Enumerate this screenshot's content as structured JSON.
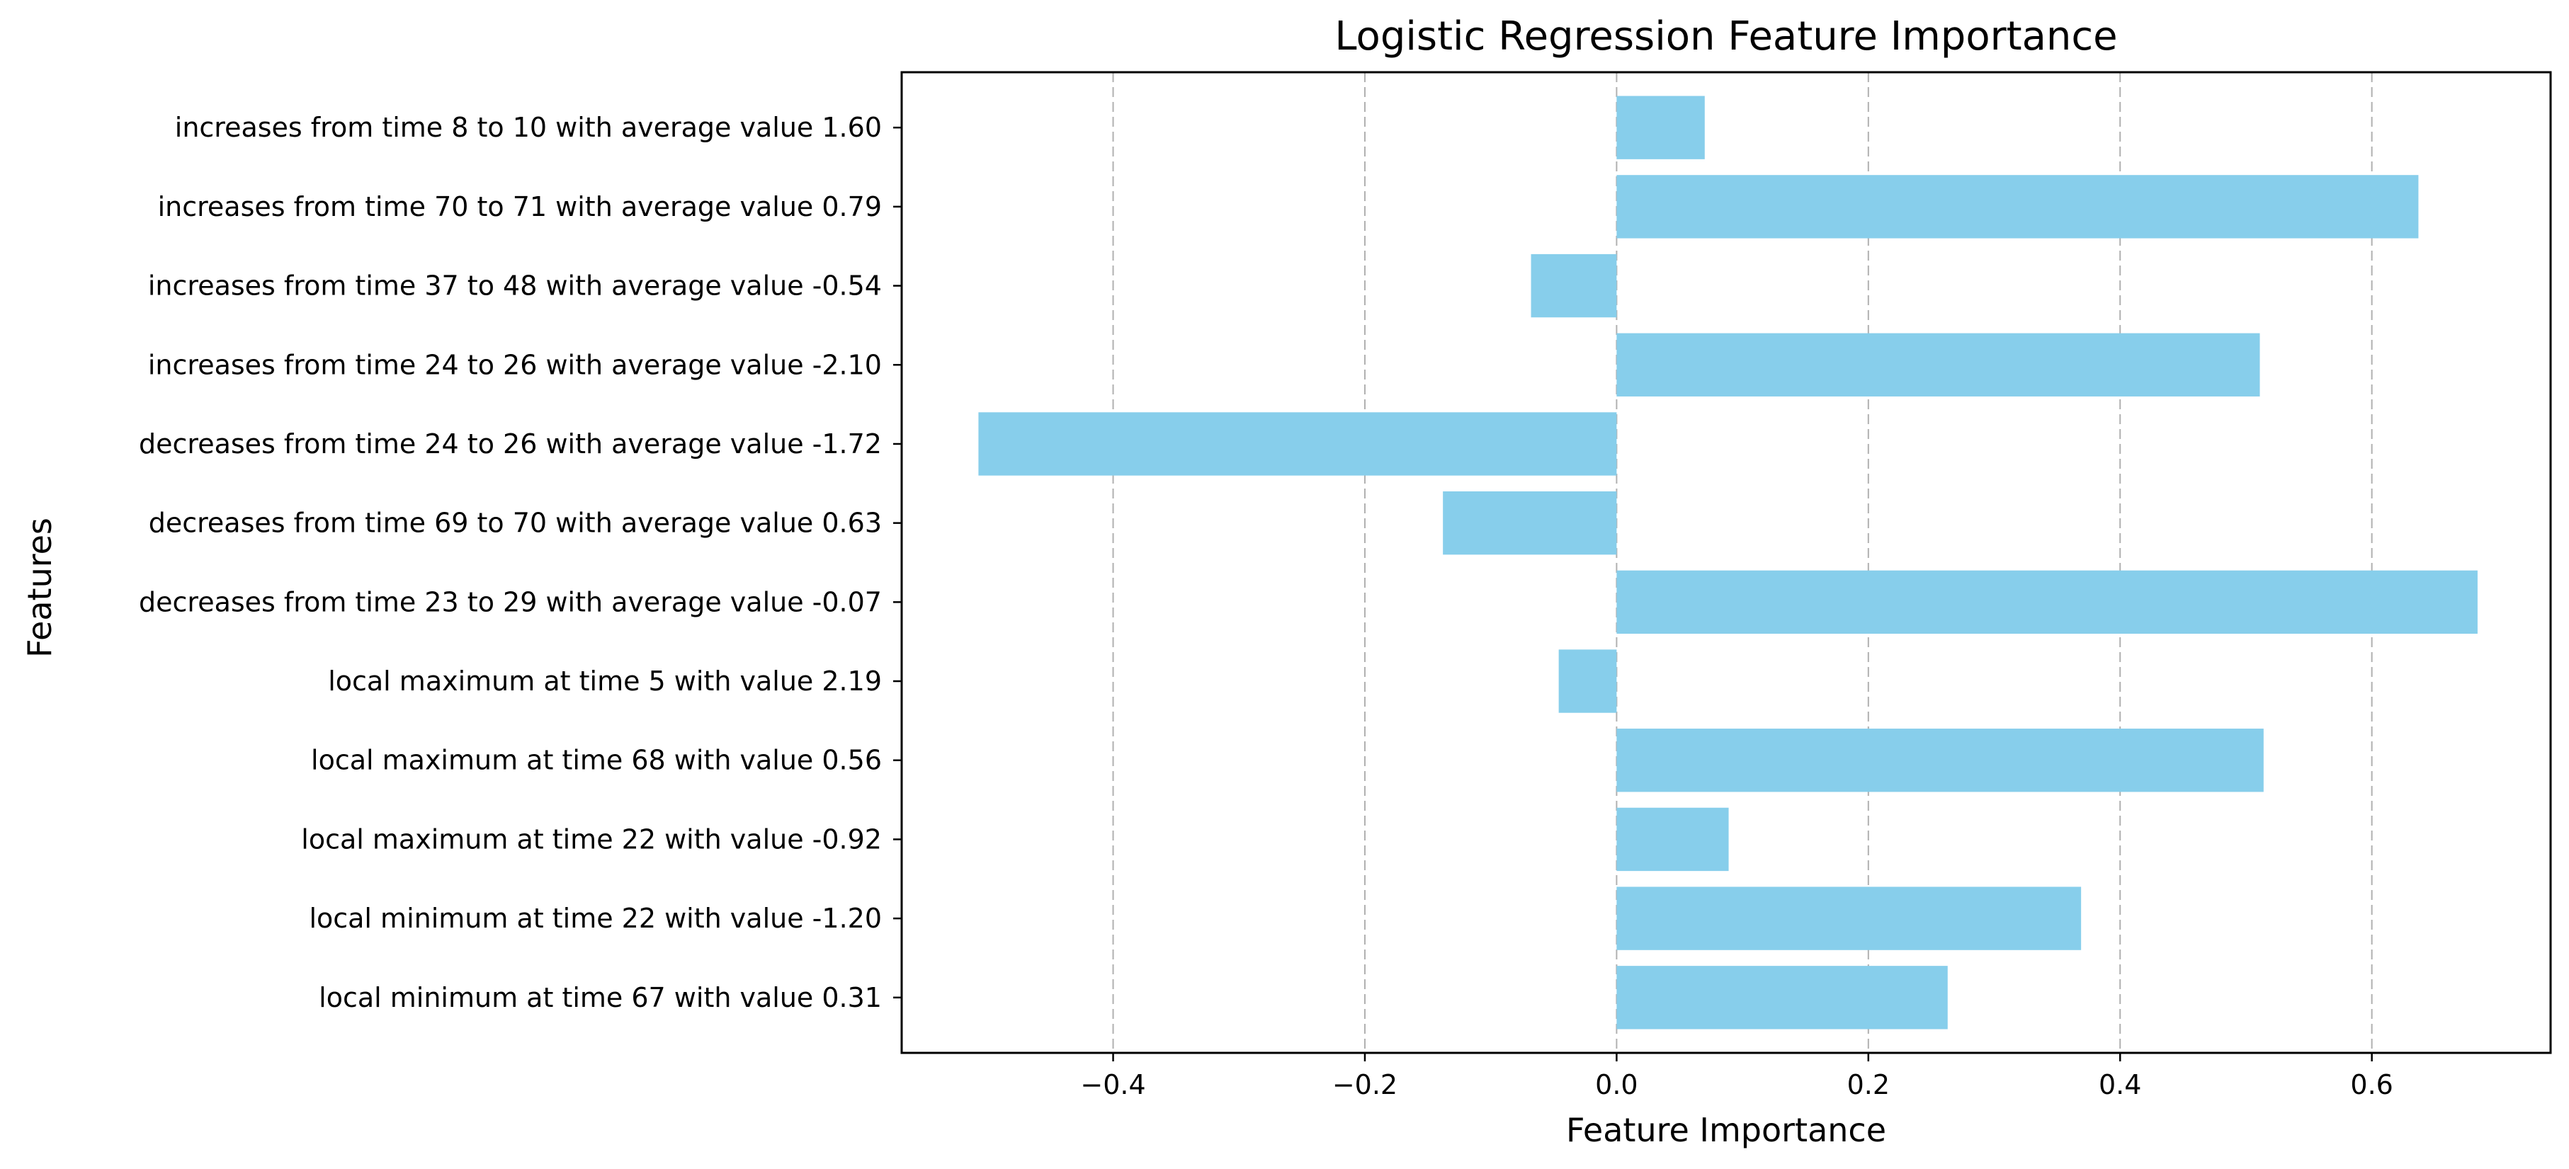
{
  "chart_data": {
    "type": "bar",
    "orientation": "horizontal",
    "title": "Logistic Regression Feature Importance",
    "xlabel": "Feature Importance",
    "ylabel": "Features",
    "categories": [
      "local minimum at time 67 with value 0.31",
      "local minimum at time 22 with value -1.20",
      "local maximum at time 22 with value -0.92",
      "local maximum at time 68 with value 0.56",
      "local maximum at time 5 with value 2.19",
      "decreases from time 23 to 29 with average value -0.07",
      "decreases from time 69 to 70 with average value 0.63",
      "decreases from time 24 to 26 with average value -1.72",
      "increases from time 24 to 26 with average value -2.10",
      "increases from time 37 to 48 with average value -0.54",
      "increases from time 70 to 71 with average value 0.79",
      "increases from time 8 to 10 with average value 1.60"
    ],
    "values": [
      0.263,
      0.369,
      0.089,
      0.514,
      -0.046,
      0.684,
      -0.138,
      -0.507,
      0.511,
      -0.068,
      0.637,
      0.07
    ],
    "xlim": [
      -0.568,
      0.742
    ],
    "xticks": [
      -0.4,
      -0.2,
      0.0,
      0.2,
      0.4,
      0.6
    ],
    "xtick_labels": [
      "−0.4",
      "−0.2",
      "0.0",
      "0.2",
      "0.4",
      "0.6"
    ],
    "grid": "x-axis dashed",
    "bar_color": "#87ceeb"
  }
}
